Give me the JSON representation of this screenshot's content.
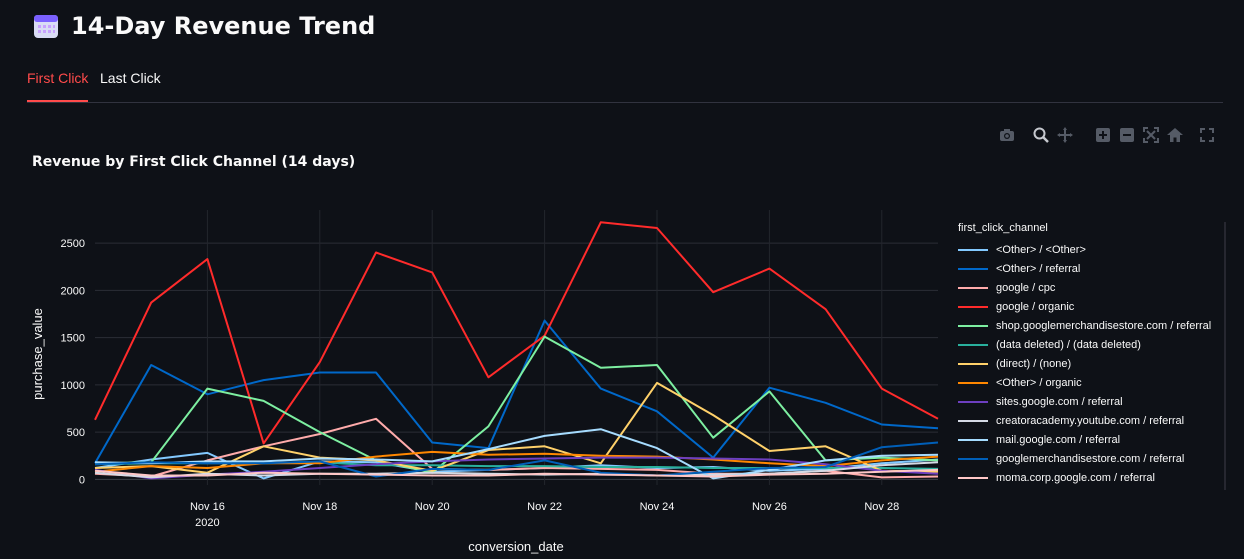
{
  "header": {
    "title": "14-Day Revenue Trend",
    "icon": "calendar-icon"
  },
  "tabs": [
    {
      "label": "First Click",
      "active": true
    },
    {
      "label": "Last Click",
      "active": false
    }
  ],
  "modebar": [
    "camera-icon",
    "zoom-icon",
    "pan-icon",
    "zoom-in-icon",
    "zoom-out-icon",
    "autoscale-icon",
    "home-icon",
    "fullscreen-icon"
  ],
  "chart_data": {
    "type": "line",
    "title": "Revenue by First Click Channel (14 days)",
    "xlabel": "conversion_date",
    "ylabel": "purchase_value",
    "x": [
      "2020-11-14",
      "2020-11-15",
      "2020-11-16",
      "2020-11-17",
      "2020-11-18",
      "2020-11-19",
      "2020-11-20",
      "2020-11-21",
      "2020-11-22",
      "2020-11-23",
      "2020-11-24",
      "2020-11-25",
      "2020-11-26",
      "2020-11-27",
      "2020-11-28",
      "2020-11-29"
    ],
    "x_tick_labels": [
      "Nov 16\n2020",
      "Nov 18",
      "Nov 20",
      "Nov 22",
      "Nov 24",
      "Nov 26",
      "Nov 28"
    ],
    "x_tick_dates": [
      "2020-11-16",
      "2020-11-18",
      "2020-11-20",
      "2020-11-22",
      "2020-11-24",
      "2020-11-26",
      "2020-11-28"
    ],
    "y_ticks": [
      0,
      500,
      1000,
      1500,
      2000,
      2500
    ],
    "ylim": [
      -60,
      2850
    ],
    "grid": true,
    "legend_title": "first_click_channel",
    "legend_position": "right",
    "series": [
      {
        "name": "<Other> / <Other>",
        "color": "#83c9ff",
        "values": [
          120,
          210,
          280,
          10,
          190,
          180,
          80,
          100,
          120,
          150,
          120,
          130,
          90,
          110,
          170,
          210
        ]
      },
      {
        "name": "<Other> / referral",
        "color": "#0068c9",
        "values": [
          170,
          1210,
          900,
          1050,
          1130,
          1130,
          390,
          330,
          1680,
          960,
          720,
          230,
          970,
          810,
          580,
          540
        ]
      },
      {
        "name": "google / cpc",
        "color": "#ffabab",
        "values": [
          60,
          30,
          200,
          350,
          480,
          640,
          110,
          100,
          120,
          110,
          100,
          60,
          60,
          90,
          20,
          30
        ]
      },
      {
        "name": "google / organic",
        "color": "#ff2b2b",
        "values": [
          630,
          1870,
          2330,
          380,
          1240,
          2400,
          2190,
          1080,
          1520,
          2720,
          2660,
          1980,
          2230,
          1800,
          960,
          640
        ]
      },
      {
        "name": "shop.googlemerchandisestore.com / referral",
        "color": "#7defa1",
        "values": [
          170,
          180,
          960,
          830,
          500,
          200,
          70,
          560,
          1510,
          1180,
          1210,
          440,
          930,
          200,
          230,
          200
        ]
      },
      {
        "name": "(data deleted) / (data deleted)",
        "color": "#29b09d",
        "values": [
          160,
          170,
          170,
          170,
          180,
          150,
          150,
          140,
          140,
          130,
          130,
          120,
          120,
          120,
          120,
          110
        ]
      },
      {
        "name": "(direct) / (none)",
        "color": "#ffd16a",
        "values": [
          120,
          140,
          70,
          350,
          230,
          200,
          90,
          310,
          350,
          170,
          1020,
          680,
          300,
          350,
          90,
          80
        ]
      },
      {
        "name": "<Other> / organic",
        "color": "#ff8700",
        "values": [
          80,
          140,
          120,
          170,
          170,
          240,
          290,
          260,
          270,
          250,
          240,
          210,
          170,
          140,
          200,
          240
        ]
      },
      {
        "name": "sites.google.com / referral",
        "color": "#6d3fc0",
        "values": [
          100,
          10,
          50,
          80,
          120,
          160,
          190,
          210,
          220,
          230,
          230,
          220,
          210,
          160,
          90,
          60
        ]
      },
      {
        "name": "creatoracademy.youtube.com / referral",
        "color": "#d5dae5",
        "values": [
          70,
          20,
          60,
          40,
          60,
          60,
          70,
          60,
          50,
          60,
          40,
          50,
          60,
          90,
          150,
          180
        ]
      },
      {
        "name": "mail.google.com / referral",
        "color": "#a6dcff",
        "values": [
          180,
          170,
          190,
          190,
          220,
          210,
          190,
          320,
          460,
          530,
          330,
          10,
          100,
          200,
          250,
          260
        ]
      },
      {
        "name": "googlemerchandisestore.com / referral",
        "color": "#005fb8",
        "values": [
          160,
          180,
          170,
          170,
          190,
          30,
          110,
          100,
          200,
          70,
          40,
          80,
          120,
          130,
          340,
          390
        ]
      },
      {
        "name": "moma.corp.google.com / referral",
        "color": "#ffc7c7",
        "values": [
          90,
          40,
          40,
          70,
          60,
          50,
          40,
          40,
          60,
          50,
          40,
          30,
          50,
          60,
          80,
          100
        ]
      }
    ]
  }
}
